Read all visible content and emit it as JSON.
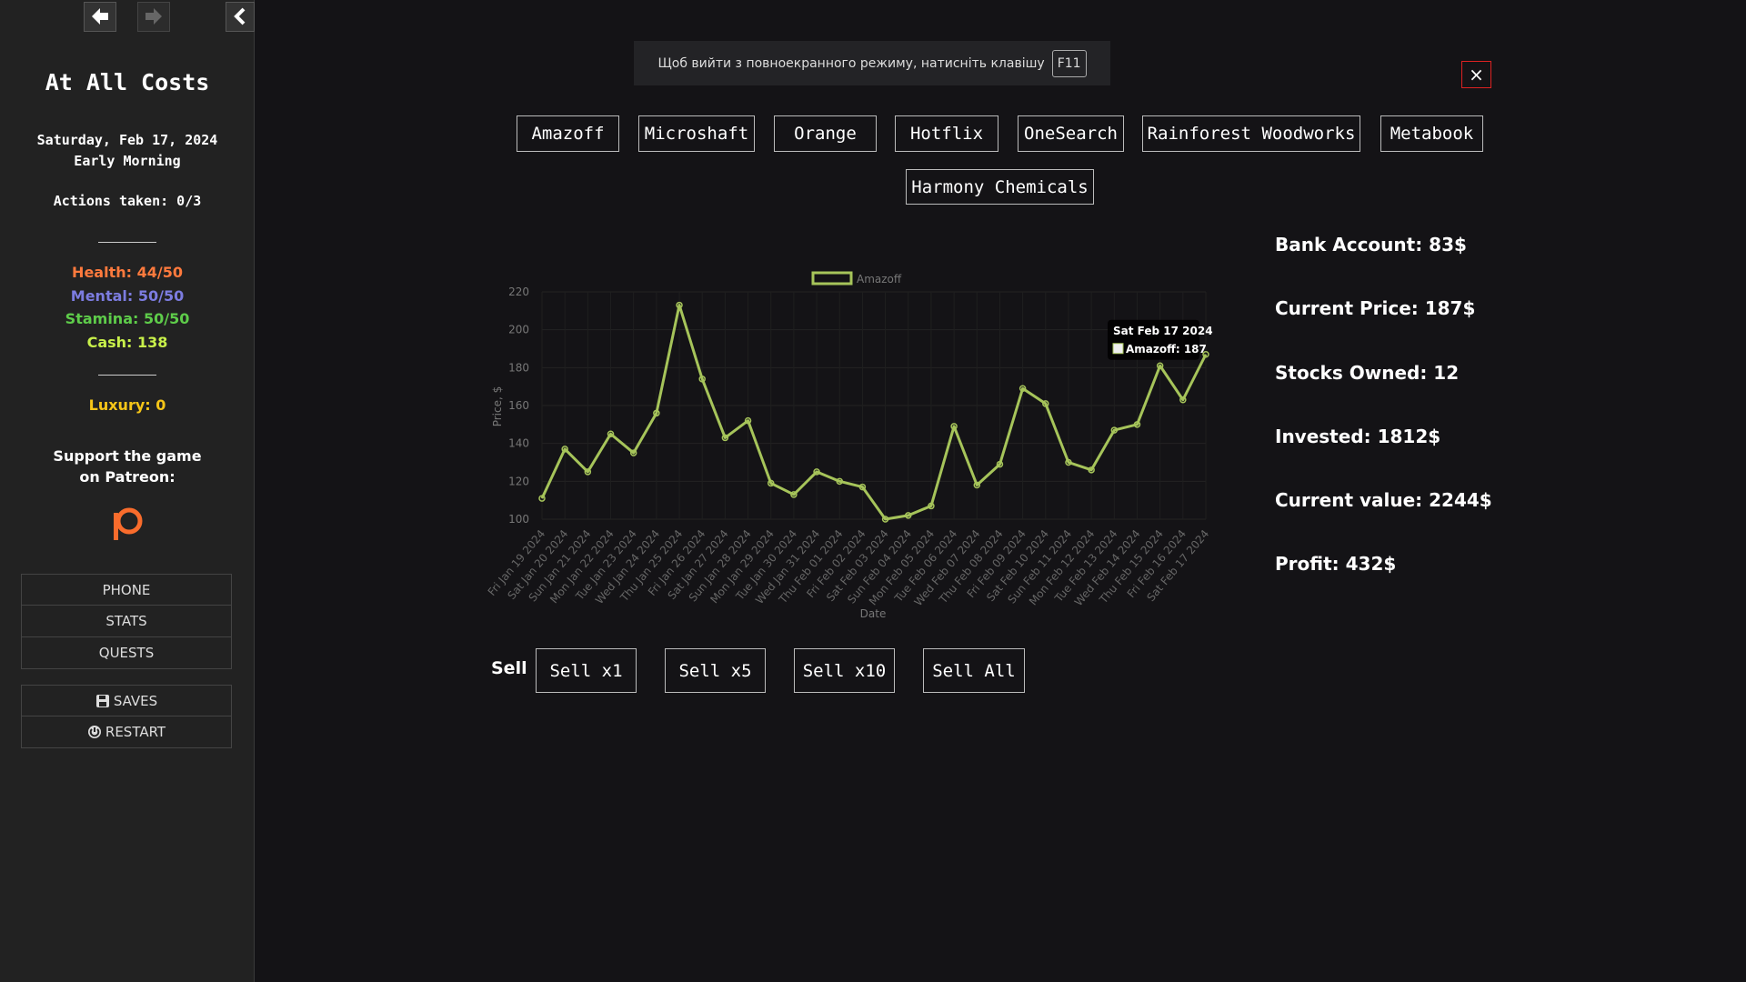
{
  "sidebar": {
    "title": "At All Costs",
    "date": "Saturday, Feb 17, 2024",
    "time": "Early Morning",
    "actions": "Actions taken: 0/3",
    "health": "Health: 44/50",
    "mental": "Mental: 50/50",
    "stamina": "Stamina: 50/50",
    "cash": "Cash: 138",
    "luxury": "Luxury: 0",
    "support": "Support the game on Patreon:",
    "menu": [
      "PHONE",
      "STATS",
      "QUESTS"
    ],
    "saves": "SAVES",
    "restart": "RESTART"
  },
  "fullscreen_notice": {
    "text": "Щоб вийти з повноекранного режиму, натисніть клавішу",
    "key": "F11"
  },
  "close": "×",
  "companies": [
    "Amazoff",
    "Microshaft",
    "Orange",
    "Hotflix",
    "OneSearch",
    "Rainforest Woodworks",
    "Metabook",
    "Harmony Chemicals"
  ],
  "chart_data": {
    "type": "line",
    "x_label": "Date",
    "y_label": "Price, $",
    "categories": [
      "Fri Jan 19 2024",
      "Sat Jan 20 2024",
      "Sun Jan 21 2024",
      "Mon Jan 22 2024",
      "Tue Jan 23 2024",
      "Wed Jan 24 2024",
      "Thu Jan 25 2024",
      "Fri Jan 26 2024",
      "Sat Jan 27 2024",
      "Sun Jan 28 2024",
      "Mon Jan 29 2024",
      "Tue Jan 30 2024",
      "Wed Jan 31 2024",
      "Thu Feb 01 2024",
      "Fri Feb 02 2024",
      "Sat Feb 03 2024",
      "Sun Feb 04 2024",
      "Mon Feb 05 2024",
      "Tue Feb 06 2024",
      "Wed Feb 07 2024",
      "Thu Feb 08 2024",
      "Fri Feb 09 2024",
      "Sat Feb 10 2024",
      "Sun Feb 11 2024",
      "Mon Feb 12 2024",
      "Tue Feb 13 2024",
      "Wed Feb 14 2024",
      "Thu Feb 15 2024",
      "Fri Feb 16 2024",
      "Sat Feb 17 2024"
    ],
    "series": [
      {
        "name": "Amazoff",
        "color": "#a6c45a",
        "values": [
          111,
          137,
          125,
          145,
          135,
          156,
          213,
          174,
          143,
          152,
          119,
          113,
          125,
          120,
          117,
          100,
          102,
          107,
          149,
          118,
          129,
          169,
          161,
          130,
          126,
          147,
          150,
          181,
          163,
          187
        ]
      }
    ],
    "ylim": [
      100,
      220
    ],
    "yticks": [
      100,
      120,
      140,
      160,
      180,
      200,
      220
    ],
    "grid": true,
    "legend": "top",
    "tooltip": {
      "title": "Sat Feb 17 2024",
      "label": "Amazoff: 187"
    }
  },
  "stats": [
    "Bank Account: 83$",
    "Current Price: 187$",
    "Stocks Owned: 12",
    "Invested: 1812$",
    "Current value: 2244$",
    "Profit: 432$"
  ],
  "sell": {
    "label": "Sell",
    "buttons": [
      "Sell x1",
      "Sell x5",
      "Sell x10",
      "Sell All"
    ]
  }
}
